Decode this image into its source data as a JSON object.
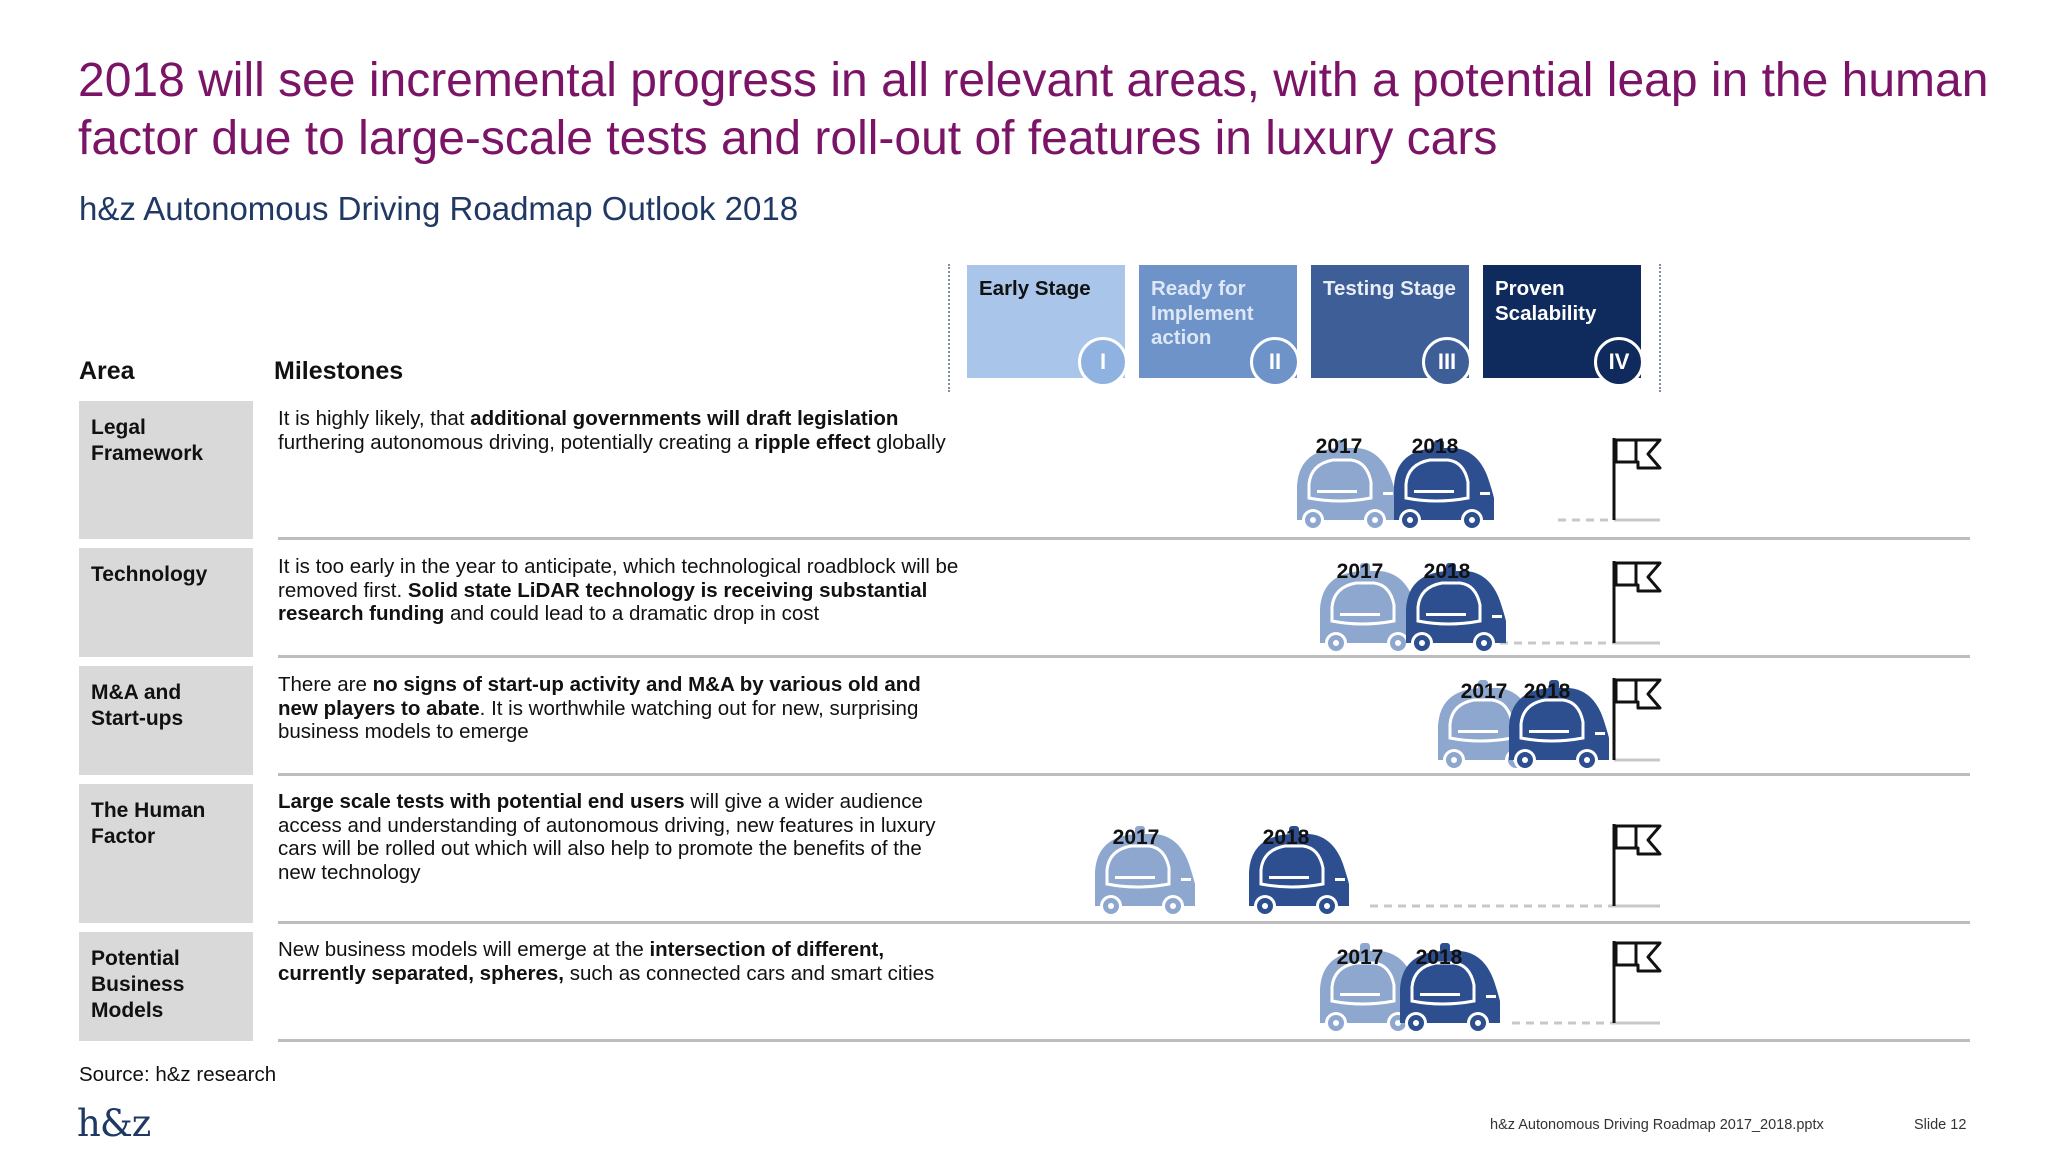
{
  "title": "2018 will see incremental progress in all relevant areas, with a potential leap in the human factor due to large-scale tests and roll-out of features in luxury cars",
  "subtitle": "h&z Autonomous Driving Roadmap Outlook 2018",
  "headers": {
    "area": "Area",
    "milestones": "Milestones"
  },
  "stages": [
    {
      "label": "Early Stage",
      "numeral": "I",
      "color": "#a9c5ea",
      "text_color": "#111111",
      "circle_color": "#8fb2e0"
    },
    {
      "label": "Ready for Implement action",
      "numeral": "II",
      "color": "#6e93c9",
      "text_color": "#dde7f5",
      "circle_color": "#6e93c9"
    },
    {
      "label": "Testing Stage",
      "numeral": "III",
      "color": "#3d5e97",
      "text_color": "#e8edf6",
      "circle_color": "#3d5e97"
    },
    {
      "label": "Proven Scalability",
      "numeral": "IV",
      "color": "#0f2a5c",
      "text_color": "#ffffff",
      "circle_color": "#0f2a5c"
    }
  ],
  "areas": [
    {
      "name": "Legal Framework",
      "milestone_html": "It is highly likely, that <b>additional governments will draft legislation</b> furthering autonomous driving, potentially creating a <b>ripple effect</b> globally",
      "year_2017": "2017",
      "year_2018": "2018"
    },
    {
      "name": "Technology",
      "milestone_html": "It is too early in the year to anticipate, which technological roadblock will be removed first. <b>Solid state LiDAR technology is receiving substantial research funding</b> and could lead to a dramatic drop in cost",
      "year_2017": "2017",
      "year_2018": "2018"
    },
    {
      "name": "M&A and Start-ups",
      "milestone_html": "There are <b>no signs of start-up activity and M&A by various old and new players to abate</b>. It is worthwhile watching out for new, surprising business models to emerge",
      "year_2017": "2017",
      "year_2018": "2018"
    },
    {
      "name": "The Human Factor",
      "milestone_html": "<b>Large scale tests with potential end users</b> will give a wider audience access and understanding of autonomous driving, new features in luxury cars will be rolled out which will also help to promote the benefits of the new technology",
      "year_2017": "2017",
      "year_2018": "2018"
    },
    {
      "name": "Potential Business Models",
      "milestone_html": "New business models will emerge at the <b>intersection of different, currently separated, spheres,</b> such as connected cars and smart cities",
      "year_2017": "2017",
      "year_2018": "2018"
    }
  ],
  "colors": {
    "car_2017": "#8ea7cf",
    "car_2018": "#2e4f8f",
    "title": "#7b1466",
    "subtitle": "#1f3864"
  },
  "source": "Source: h&z research",
  "logo": "h&z",
  "footer": {
    "file": "h&z Autonomous Driving Roadmap 2017_2018.pptx",
    "slide": "Slide 12"
  },
  "icons": {
    "car": "autonomous-car-icon",
    "goal": "flag-icon"
  }
}
